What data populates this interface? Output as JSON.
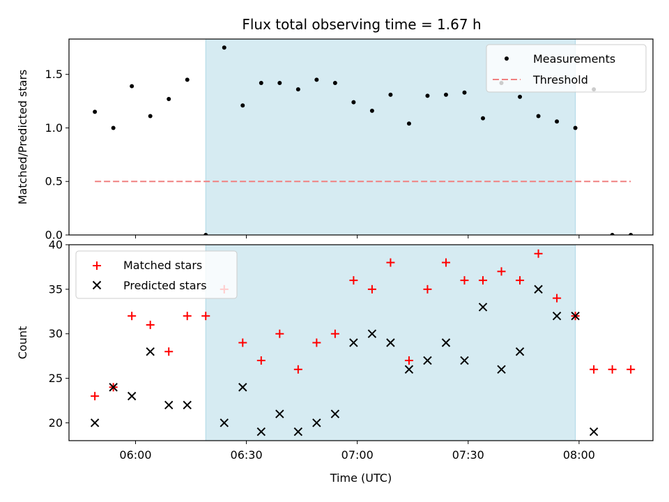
{
  "title": "Flux total observing time = 1.67 h",
  "colors": {
    "band": "#add8e6",
    "threshold": "#f08080",
    "matched": "#ff0000",
    "predicted": "#000000",
    "measurement": "#000000"
  },
  "chart_data": [
    {
      "type": "scatter",
      "panel": "top",
      "ylabel": "Matched/Predicted stars",
      "xlabel": "",
      "ylim": [
        0,
        1.83
      ],
      "yticks": [
        0.0,
        0.5,
        1.0,
        1.5
      ],
      "ytick_labels": [
        "0.0",
        "0.5",
        "1.0",
        "1.5"
      ],
      "xlim": [
        "05:42",
        "08:20"
      ],
      "shaded_range": [
        "06:19",
        "07:59"
      ],
      "legend": {
        "placement": "top-right",
        "entries": [
          "Measurements",
          "Threshold"
        ]
      },
      "series": [
        {
          "name": "Measurements",
          "marker": "dot",
          "x": [
            "05:49",
            "05:54",
            "05:59",
            "06:04",
            "06:09",
            "06:14",
            "06:19",
            "06:24",
            "06:29",
            "06:34",
            "06:39",
            "06:44",
            "06:49",
            "06:54",
            "06:59",
            "07:04",
            "07:09",
            "07:14",
            "07:19",
            "07:24",
            "07:29",
            "07:34",
            "07:39",
            "07:44",
            "07:49",
            "07:54",
            "07:59",
            "08:04",
            "08:09",
            "08:14"
          ],
          "y": [
            1.15,
            1.0,
            1.39,
            1.11,
            1.27,
            1.45,
            0.0,
            1.75,
            1.21,
            1.42,
            1.42,
            1.36,
            1.45,
            1.42,
            1.24,
            1.16,
            1.31,
            1.04,
            1.3,
            1.31,
            1.33,
            1.09,
            1.42,
            1.29,
            1.11,
            1.06,
            1.0,
            1.36,
            0.0,
            0.0
          ]
        },
        {
          "name": "Threshold",
          "style": "dashed",
          "x": [
            "05:49",
            "08:14"
          ],
          "y": [
            0.5,
            0.5
          ]
        }
      ]
    },
    {
      "type": "scatter",
      "panel": "bottom",
      "ylabel": "Count",
      "xlabel": "Time (UTC)",
      "ylim": [
        18,
        40
      ],
      "yticks": [
        20,
        25,
        30,
        35,
        40
      ],
      "ytick_labels": [
        "20",
        "25",
        "30",
        "35",
        "40"
      ],
      "xlim": [
        "05:42",
        "08:20"
      ],
      "xticks": [
        "06:00",
        "06:30",
        "07:00",
        "07:30",
        "08:00"
      ],
      "xtick_labels": [
        "06:00",
        "06:30",
        "07:00",
        "07:30",
        "08:00"
      ],
      "shaded_range": [
        "06:19",
        "07:59"
      ],
      "legend": {
        "placement": "top-left",
        "entries": [
          "Matched stars",
          "Predicted stars"
        ]
      },
      "series": [
        {
          "name": "Matched stars",
          "marker": "plus",
          "x": [
            "05:49",
            "05:54",
            "05:59",
            "06:04",
            "06:09",
            "06:14",
            "06:19",
            "06:24",
            "06:29",
            "06:34",
            "06:39",
            "06:44",
            "06:49",
            "06:54",
            "06:59",
            "07:04",
            "07:09",
            "07:14",
            "07:19",
            "07:24",
            "07:29",
            "07:34",
            "07:39",
            "07:44",
            "07:49",
            "07:54",
            "07:59",
            "08:04",
            "08:09",
            "08:14"
          ],
          "y": [
            23,
            24,
            32,
            31,
            28,
            32,
            32,
            35,
            29,
            27,
            30,
            26,
            29,
            30,
            36,
            35,
            38,
            27,
            35,
            38,
            36,
            36,
            37,
            36,
            39,
            34,
            32,
            26,
            26,
            26
          ]
        },
        {
          "name": "Predicted stars",
          "marker": "x",
          "x": [
            "05:49",
            "05:54",
            "05:59",
            "06:04",
            "06:09",
            "06:14",
            "06:24",
            "06:29",
            "06:34",
            "06:39",
            "06:44",
            "06:49",
            "06:54",
            "06:59",
            "07:04",
            "07:09",
            "07:14",
            "07:19",
            "07:24",
            "07:29",
            "07:34",
            "07:39",
            "07:44",
            "07:49",
            "07:54",
            "07:59",
            "08:04"
          ],
          "y": [
            20,
            24,
            23,
            28,
            22,
            22,
            20,
            24,
            19,
            21,
            19,
            20,
            21,
            29,
            30,
            29,
            26,
            27,
            29,
            27,
            33,
            26,
            28,
            35,
            32,
            32,
            19
          ]
        }
      ]
    }
  ]
}
